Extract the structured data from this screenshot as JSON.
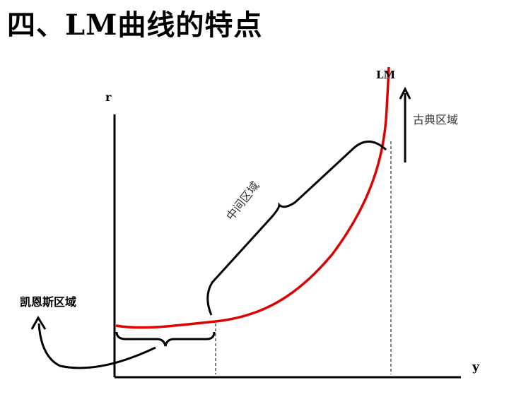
{
  "title": "四、LM曲线的特点",
  "axes": {
    "y_axis_label": "r",
    "x_axis_label": "y"
  },
  "curve_label": "LM",
  "regions": {
    "keynesian": "凯恩斯区域",
    "intermediate": "中间区域",
    "classical": "古典区域"
  },
  "colors": {
    "lm_curve": "#e00000",
    "axes": "#000000",
    "guides": "#000000"
  }
}
